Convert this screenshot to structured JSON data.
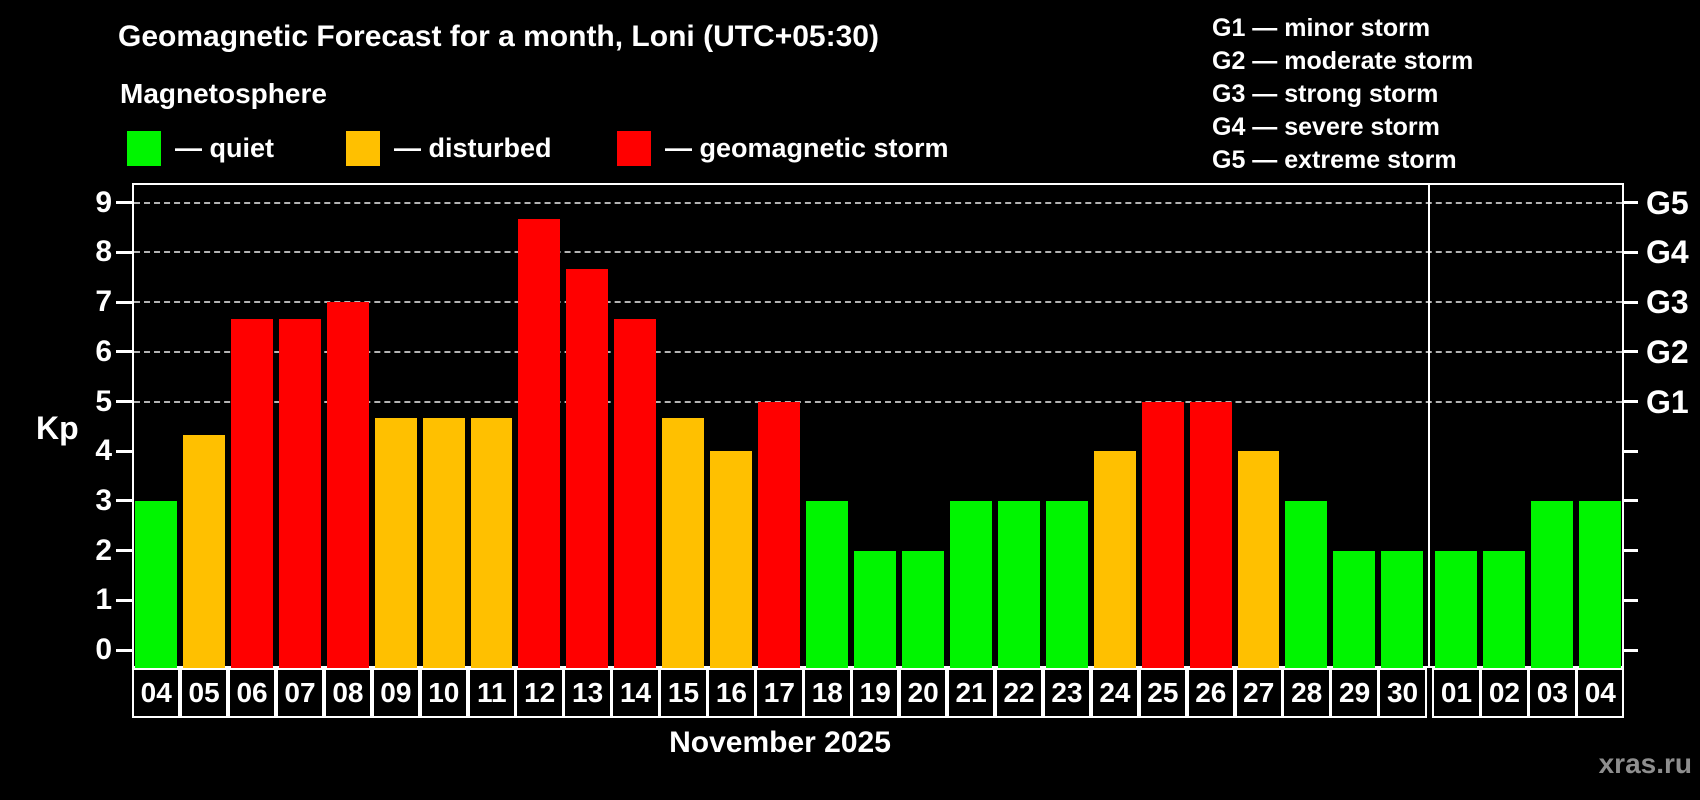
{
  "header": {
    "title": "Geomagnetic Forecast for a month, Loni (UTC+05:30)",
    "subtitle": "Magnetosphere"
  },
  "legend": {
    "items": [
      {
        "key": "quiet",
        "label": "— quiet",
        "color": "#00f500"
      },
      {
        "key": "disturbed",
        "label": "— disturbed",
        "color": "#ffc000"
      },
      {
        "key": "storm",
        "label": "— geomagnetic storm",
        "color": "#ff0000"
      }
    ]
  },
  "g_legend": {
    "items": [
      "G1 — minor storm",
      "G2 — moderate storm",
      "G3 — strong storm",
      "G4 — severe storm",
      "G5 — extreme storm"
    ]
  },
  "watermark": "xras.ru",
  "chart_data": {
    "type": "bar",
    "title": "Geomagnetic Forecast for a month, Loni (UTC+05:30)",
    "xlabel": "November 2025",
    "ylabel": "Kp",
    "ylim": [
      0,
      9
    ],
    "yticks": [
      0,
      1,
      2,
      3,
      4,
      5,
      6,
      7,
      8,
      9
    ],
    "gridlines_kp": [
      5,
      6,
      7,
      8,
      9
    ],
    "grid": "dashed",
    "legend_position": "top",
    "right_axis_labels": [
      {
        "label": "G1",
        "kp": 5
      },
      {
        "label": "G2",
        "kp": 6
      },
      {
        "label": "G3",
        "kp": 7
      },
      {
        "label": "G4",
        "kp": 8
      },
      {
        "label": "G5",
        "kp": 9
      }
    ],
    "level_colors": {
      "quiet": "#00f500",
      "disturbed": "#ffc000",
      "storm": "#ff0000"
    },
    "month_break_after_index": 26,
    "bars": [
      {
        "date": "04",
        "kp": 3,
        "level": "quiet"
      },
      {
        "date": "05",
        "kp": 4.33,
        "level": "disturbed"
      },
      {
        "date": "06",
        "kp": 6.67,
        "level": "storm"
      },
      {
        "date": "07",
        "kp": 6.67,
        "level": "storm"
      },
      {
        "date": "08",
        "kp": 7,
        "level": "storm"
      },
      {
        "date": "09",
        "kp": 4.67,
        "level": "disturbed"
      },
      {
        "date": "10",
        "kp": 4.67,
        "level": "disturbed"
      },
      {
        "date": "11",
        "kp": 4.67,
        "level": "disturbed"
      },
      {
        "date": "12",
        "kp": 8.67,
        "level": "storm"
      },
      {
        "date": "13",
        "kp": 7.67,
        "level": "storm"
      },
      {
        "date": "14",
        "kp": 6.67,
        "level": "storm"
      },
      {
        "date": "15",
        "kp": 4.67,
        "level": "disturbed"
      },
      {
        "date": "16",
        "kp": 4,
        "level": "disturbed"
      },
      {
        "date": "17",
        "kp": 5,
        "level": "storm"
      },
      {
        "date": "18",
        "kp": 3,
        "level": "quiet"
      },
      {
        "date": "19",
        "kp": 2,
        "level": "quiet"
      },
      {
        "date": "20",
        "kp": 2,
        "level": "quiet"
      },
      {
        "date": "21",
        "kp": 3,
        "level": "quiet"
      },
      {
        "date": "22",
        "kp": 3,
        "level": "quiet"
      },
      {
        "date": "23",
        "kp": 3,
        "level": "quiet"
      },
      {
        "date": "24",
        "kp": 4,
        "level": "disturbed"
      },
      {
        "date": "25",
        "kp": 5,
        "level": "storm"
      },
      {
        "date": "26",
        "kp": 5,
        "level": "storm"
      },
      {
        "date": "27",
        "kp": 4,
        "level": "disturbed"
      },
      {
        "date": "28",
        "kp": 3,
        "level": "quiet"
      },
      {
        "date": "29",
        "kp": 2,
        "level": "quiet"
      },
      {
        "date": "30",
        "kp": 2,
        "level": "quiet"
      },
      {
        "date": "01",
        "kp": 2,
        "level": "quiet"
      },
      {
        "date": "02",
        "kp": 2,
        "level": "quiet"
      },
      {
        "date": "03",
        "kp": 3,
        "level": "quiet"
      },
      {
        "date": "04",
        "kp": 3,
        "level": "quiet"
      }
    ]
  }
}
